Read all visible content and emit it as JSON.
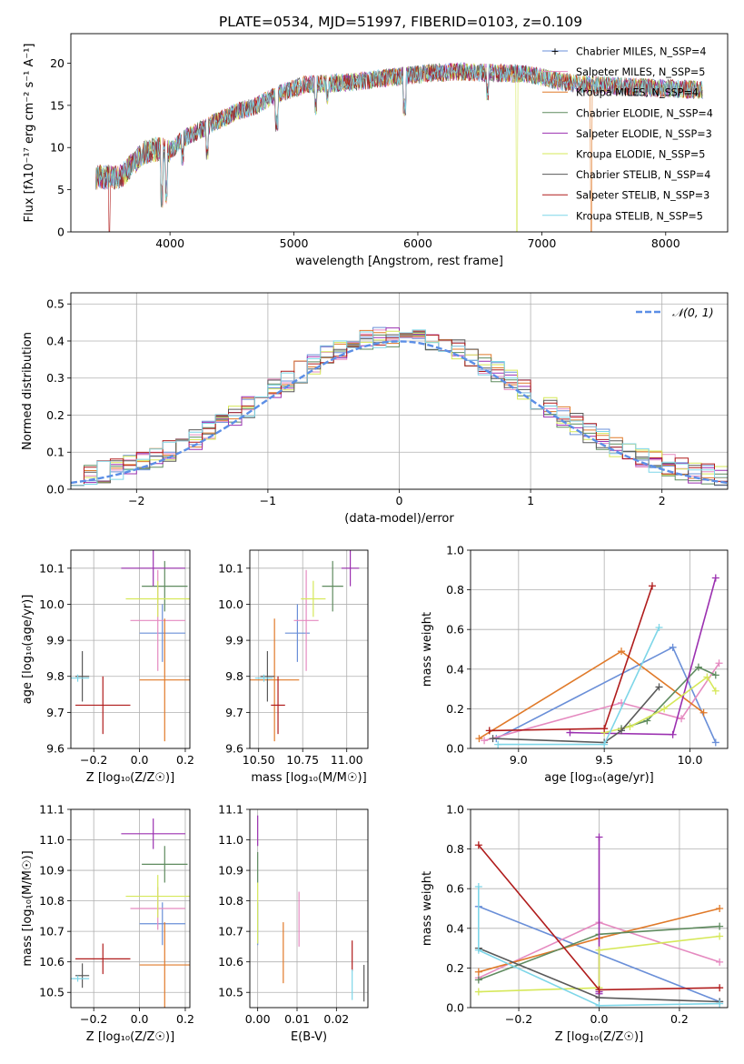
{
  "title": "PLATE=0534, MJD=51997, FIBERID=0103, z=0.109",
  "colors": {
    "chab_miles": "#6a8fd8",
    "salp_miles": "#e58ac0",
    "krou_miles": "#e07a2a",
    "chab_elodie": "#5f8b5f",
    "salp_elodie": "#9b30b0",
    "krou_elodie": "#d6e85a",
    "chab_stelib": "#5a5a5a",
    "salp_stelib": "#b01c1c",
    "krou_stelib": "#7ed6e8",
    "gauss": "#5b8ee6"
  },
  "chart_data": [
    {
      "id": "spectrum",
      "type": "line",
      "xlabel": "wavelength [Angstrom, rest frame]",
      "ylabel": "Flux [fλ10⁻¹⁷ erg cm⁻² s⁻¹ A⁻¹]",
      "xlim": [
        3200,
        8500
      ],
      "ylim": [
        0,
        23.5
      ],
      "xticks": [
        "4000",
        "5000",
        "6000",
        "7000",
        "8000"
      ],
      "yticks": [
        "0",
        "5",
        "10",
        "15",
        "20"
      ],
      "data_range": [
        3400,
        8300
      ],
      "continuum": [
        [
          3400,
          6.5
        ],
        [
          3600,
          6.5
        ],
        [
          3700,
          8.0
        ],
        [
          3800,
          9.5
        ],
        [
          3900,
          9.8
        ],
        [
          4000,
          9.5
        ],
        [
          4100,
          11.0
        ],
        [
          4300,
          12.5
        ],
        [
          4500,
          14.0
        ],
        [
          4700,
          15.0
        ],
        [
          4900,
          16.5
        ],
        [
          5100,
          17.5
        ],
        [
          5300,
          17.6
        ],
        [
          5500,
          17.8
        ],
        [
          5700,
          18.2
        ],
        [
          5900,
          18.5
        ],
        [
          6100,
          18.8
        ],
        [
          6300,
          19.0
        ],
        [
          6500,
          18.9
        ],
        [
          6700,
          18.8
        ],
        [
          6900,
          18.7
        ],
        [
          7100,
          18.0
        ],
        [
          7300,
          17.5
        ],
        [
          7600,
          17.3
        ],
        [
          8000,
          17.0
        ],
        [
          8300,
          16.8
        ]
      ],
      "legend": [
        {
          "label": "Chabrier MILES, N_SSP=4",
          "color": "chab_miles"
        },
        {
          "label": "Salpeter MILES, N_SSP=5",
          "color": "salp_miles"
        },
        {
          "label": "Kroupa MILES, N_SSP=4",
          "color": "krou_miles"
        },
        {
          "label": "Chabrier ELODIE, N_SSP=4",
          "color": "chab_elodie"
        },
        {
          "label": "Salpeter ELODIE, N_SSP=3",
          "color": "salp_elodie"
        },
        {
          "label": "Kroupa ELODIE, N_SSP=5",
          "color": "krou_elodie"
        },
        {
          "label": "Chabrier STELIB, N_SSP=4",
          "color": "chab_stelib"
        },
        {
          "label": "Salpeter STELIB, N_SSP=3",
          "color": "salp_stelib"
        },
        {
          "label": "Kroupa STELIB, N_SSP=5",
          "color": "krou_stelib"
        }
      ],
      "legend_position": "upper-right"
    },
    {
      "id": "residuals",
      "type": "histogram",
      "xlabel": "(data-model)/error",
      "ylabel": "Normed distribution",
      "xlim": [
        -2.5,
        2.5
      ],
      "ylim": [
        0,
        0.53
      ],
      "xticks": [
        "−2",
        "−1",
        "0",
        "1",
        "2"
      ],
      "yticks": [
        "0.0",
        "0.1",
        "0.2",
        "0.3",
        "0.4",
        "0.5"
      ],
      "grid": true,
      "reference_label": "𝒩(0, 1)",
      "legend_position": "upper-right",
      "bin_width": 0.1
    },
    {
      "id": "age_vs_Z",
      "type": "errorbar",
      "xlabel": "Z [log₁₀(Z/Z☉)]",
      "ylabel": "age  [log₁₀(age/yr)]",
      "xlim": [
        -0.3,
        0.22
      ],
      "ylim": [
        9.6,
        10.15
      ],
      "xticks": [
        "−0.2",
        "0.0",
        "0.2"
      ],
      "yticks": [
        "9.6",
        "9.7",
        "9.8",
        "9.9",
        "10.0",
        "10.1"
      ],
      "points": [
        {
          "c": "chab_miles",
          "x": 0.1,
          "xe": 0.1,
          "y": 9.92,
          "ye": 0.08
        },
        {
          "c": "salp_miles",
          "x": 0.08,
          "xe": 0.12,
          "y": 9.955,
          "ye": 0.14
        },
        {
          "c": "krou_miles",
          "x": 0.11,
          "xe": 0.11,
          "y": 9.79,
          "ye": 0.17
        },
        {
          "c": "chab_elodie",
          "x": 0.11,
          "xe": 0.1,
          "y": 10.05,
          "ye": 0.07
        },
        {
          "c": "salp_elodie",
          "x": 0.06,
          "xe": 0.14,
          "y": 10.1,
          "ye": 0.05
        },
        {
          "c": "krou_elodie",
          "x": 0.08,
          "xe": 0.14,
          "y": 10.015,
          "ye": 0.05
        },
        {
          "c": "chab_stelib",
          "x": -0.25,
          "xe": 0.03,
          "y": 9.8,
          "ye": 0.07
        },
        {
          "c": "salp_stelib",
          "x": -0.16,
          "xe": 0.12,
          "y": 9.72,
          "ye": 0.08
        },
        {
          "c": "krou_stelib",
          "x": -0.27,
          "xe": 0.05,
          "y": 9.795,
          "ye": 0.01
        }
      ]
    },
    {
      "id": "age_vs_mass",
      "type": "errorbar",
      "xlabel": "mass [log₁₀(M/M☉)]",
      "ylabel": "",
      "xlim": [
        10.45,
        11.12
      ],
      "ylim": [
        9.6,
        10.15
      ],
      "xticks": [
        "10.50",
        "10.75",
        "11.00"
      ],
      "yticks": [
        "9.6",
        "9.7",
        "9.8",
        "9.9",
        "10.0",
        "10.1"
      ],
      "points": [
        {
          "c": "chab_miles",
          "x": 10.72,
          "xe": 0.07,
          "y": 9.92,
          "ye": 0.08
        },
        {
          "c": "salp_miles",
          "x": 10.77,
          "xe": 0.07,
          "y": 9.955,
          "ye": 0.14
        },
        {
          "c": "krou_miles",
          "x": 10.59,
          "xe": 0.14,
          "y": 9.79,
          "ye": 0.17
        },
        {
          "c": "chab_elodie",
          "x": 10.92,
          "xe": 0.06,
          "y": 10.05,
          "ye": 0.07
        },
        {
          "c": "salp_elodie",
          "x": 11.02,
          "xe": 0.05,
          "y": 10.1,
          "ye": 0.05
        },
        {
          "c": "krou_elodie",
          "x": 10.81,
          "xe": 0.07,
          "y": 10.015,
          "ye": 0.05
        },
        {
          "c": "chab_stelib",
          "x": 10.55,
          "xe": 0.04,
          "y": 9.8,
          "ye": 0.07
        },
        {
          "c": "salp_stelib",
          "x": 10.61,
          "xe": 0.04,
          "y": 9.72,
          "ye": 0.08
        },
        {
          "c": "krou_stelib",
          "x": 10.53,
          "xe": 0.05,
          "y": 9.795,
          "ye": 0.01
        }
      ]
    },
    {
      "id": "weight_vs_age",
      "type": "line",
      "xlabel": "age  [log₁₀(age/yr)]",
      "ylabel": "mass weight",
      "xlim": [
        8.72,
        10.22
      ],
      "ylim": [
        0,
        1.0
      ],
      "xticks": [
        "9.0",
        "9.5",
        "10.0"
      ],
      "yticks": [
        "0.0",
        "0.2",
        "0.4",
        "0.6",
        "0.8",
        "1.0"
      ],
      "grid": true,
      "series": [
        {
          "c": "chab_miles",
          "x": [
            8.87,
            9.9,
            10.15
          ],
          "y": [
            0.05,
            0.51,
            0.03
          ]
        },
        {
          "c": "salp_miles",
          "x": [
            8.8,
            9.6,
            9.95,
            10.17
          ],
          "y": [
            0.04,
            0.23,
            0.15,
            0.43
          ]
        },
        {
          "c": "krou_miles",
          "x": [
            8.77,
            9.6,
            10.08
          ],
          "y": [
            0.05,
            0.49,
            0.18
          ]
        },
        {
          "c": "chab_elodie",
          "x": [
            9.6,
            9.75,
            10.05,
            10.15
          ],
          "y": [
            0.1,
            0.14,
            0.41,
            0.37
          ]
        },
        {
          "c": "salp_elodie",
          "x": [
            9.3,
            9.9,
            10.15
          ],
          "y": [
            0.08,
            0.07,
            0.86
          ]
        },
        {
          "c": "krou_elodie",
          "x": [
            9.5,
            9.65,
            9.85,
            10.1,
            10.15
          ],
          "y": [
            0.08,
            0.11,
            0.2,
            0.36,
            0.29
          ]
        },
        {
          "c": "chab_stelib",
          "x": [
            8.85,
            9.5,
            9.6,
            9.82
          ],
          "y": [
            0.05,
            0.03,
            0.09,
            0.31
          ]
        },
        {
          "c": "salp_stelib",
          "x": [
            8.83,
            9.5,
            9.78
          ],
          "y": [
            0.09,
            0.1,
            0.82
          ]
        },
        {
          "c": "krou_stelib",
          "x": [
            8.88,
            9.5,
            9.82
          ],
          "y": [
            0.02,
            0.02,
            0.61
          ]
        }
      ]
    },
    {
      "id": "mass_vs_Z",
      "type": "errorbar",
      "xlabel": "Z [log₁₀(Z/Z☉)]",
      "ylabel": "mass [log₁₀(M/M☉)]",
      "xlim": [
        -0.3,
        0.22
      ],
      "ylim": [
        10.45,
        11.1
      ],
      "xticks": [
        "−0.2",
        "0.0",
        "0.2"
      ],
      "yticks": [
        "10.5",
        "10.6",
        "10.7",
        "10.8",
        "10.9",
        "11.0",
        "11.1"
      ],
      "points": [
        {
          "c": "chab_miles",
          "x": 0.1,
          "xe": 0.1,
          "y": 10.725,
          "ye": 0.07
        },
        {
          "c": "salp_miles",
          "x": 0.08,
          "xe": 0.12,
          "y": 10.775,
          "ye": 0.07
        },
        {
          "c": "krou_miles",
          "x": 0.11,
          "xe": 0.11,
          "y": 10.59,
          "ye": 0.14
        },
        {
          "c": "chab_elodie",
          "x": 0.11,
          "xe": 0.1,
          "y": 10.92,
          "ye": 0.06
        },
        {
          "c": "salp_elodie",
          "x": 0.06,
          "xe": 0.14,
          "y": 11.02,
          "ye": 0.05
        },
        {
          "c": "krou_elodie",
          "x": 0.08,
          "xe": 0.14,
          "y": 10.815,
          "ye": 0.07
        },
        {
          "c": "chab_stelib",
          "x": -0.25,
          "xe": 0.03,
          "y": 10.555,
          "ye": 0.04
        },
        {
          "c": "salp_stelib",
          "x": -0.16,
          "xe": 0.12,
          "y": 10.61,
          "ye": 0.05
        },
        {
          "c": "krou_stelib",
          "x": -0.27,
          "xe": 0.05,
          "y": 10.545,
          "ye": 0.01
        }
      ]
    },
    {
      "id": "mass_vs_ebv",
      "type": "errorbar",
      "xlabel": "E(B-V)",
      "ylabel": "",
      "xlim": [
        -0.002,
        0.028
      ],
      "ylim": [
        10.45,
        11.1
      ],
      "xticks": [
        "0.00",
        "0.01",
        "0.02"
      ],
      "yticks": [
        "10.5",
        "10.6",
        "10.7",
        "10.8",
        "10.9",
        "11.0",
        "11.1"
      ],
      "points": [
        {
          "c": "chab_miles",
          "x": 0.0,
          "xe": 0,
          "y": 10.725,
          "ye": 0.07
        },
        {
          "c": "salp_miles",
          "x": 0.0105,
          "xe": 0,
          "y": 10.74,
          "ye": 0.09
        },
        {
          "c": "krou_miles",
          "x": 0.0065,
          "xe": 0,
          "y": 10.63,
          "ye": 0.1
        },
        {
          "c": "chab_elodie",
          "x": 0.0,
          "xe": 0,
          "y": 10.91,
          "ye": 0.05
        },
        {
          "c": "salp_elodie",
          "x": 0.0,
          "xe": 0,
          "y": 11.03,
          "ye": 0.05
        },
        {
          "c": "krou_elodie",
          "x": 0.0,
          "xe": 0,
          "y": 10.76,
          "ye": 0.1
        },
        {
          "c": "chab_stelib",
          "x": 0.027,
          "xe": 0,
          "y": 10.53,
          "ye": 0.06
        },
        {
          "c": "salp_stelib",
          "x": 0.024,
          "xe": 0,
          "y": 10.62,
          "ye": 0.05
        },
        {
          "c": "krou_stelib",
          "x": 0.024,
          "xe": 0,
          "y": 10.525,
          "ye": 0.05
        }
      ]
    },
    {
      "id": "weight_vs_Z",
      "type": "line",
      "xlabel": "Z [log₁₀(Z/Z☉)]",
      "ylabel": "mass weight",
      "xlim": [
        -0.32,
        0.32
      ],
      "ylim": [
        0,
        1.0
      ],
      "xticks": [
        "−0.2",
        "0.0",
        "0.2"
      ],
      "yticks": [
        "0.0",
        "0.2",
        "0.4",
        "0.6",
        "0.8",
        "1.0"
      ],
      "grid": true,
      "series": [
        {
          "c": "chab_miles",
          "x": [
            -0.3,
            0.3
          ],
          "y": [
            0.51,
            0.03
          ]
        },
        {
          "c": "salp_miles",
          "x": [
            -0.3,
            0.0,
            0.3
          ],
          "y": [
            0.15,
            0.43,
            0.23
          ]
        },
        {
          "c": "krou_miles",
          "x": [
            -0.3,
            0.0,
            0.3
          ],
          "y": [
            0.18,
            0.35,
            0.5
          ]
        },
        {
          "c": "chab_elodie",
          "x": [
            -0.3,
            0.0,
            0.3
          ],
          "y": [
            0.14,
            0.37,
            0.41
          ]
        },
        {
          "c": "salp_elodie",
          "x": [
            0.0,
            0.0,
            0.0
          ],
          "y": [
            0.86,
            0.07,
            0.08
          ]
        },
        {
          "c": "krou_elodie",
          "x": [
            -0.3,
            0.0,
            0.0,
            0.3
          ],
          "y": [
            0.08,
            0.1,
            0.29,
            0.36
          ]
        },
        {
          "c": "chab_stelib",
          "x": [
            -0.3,
            0.0,
            0.3
          ],
          "y": [
            0.3,
            0.05,
            0.03
          ]
        },
        {
          "c": "salp_stelib",
          "x": [
            -0.3,
            0.0,
            0.3
          ],
          "y": [
            0.82,
            0.09,
            0.1
          ]
        },
        {
          "c": "krou_stelib",
          "x": [
            -0.3,
            -0.3,
            0.0,
            0.3
          ],
          "y": [
            0.61,
            0.29,
            0.01,
            0.02
          ]
        }
      ]
    }
  ]
}
